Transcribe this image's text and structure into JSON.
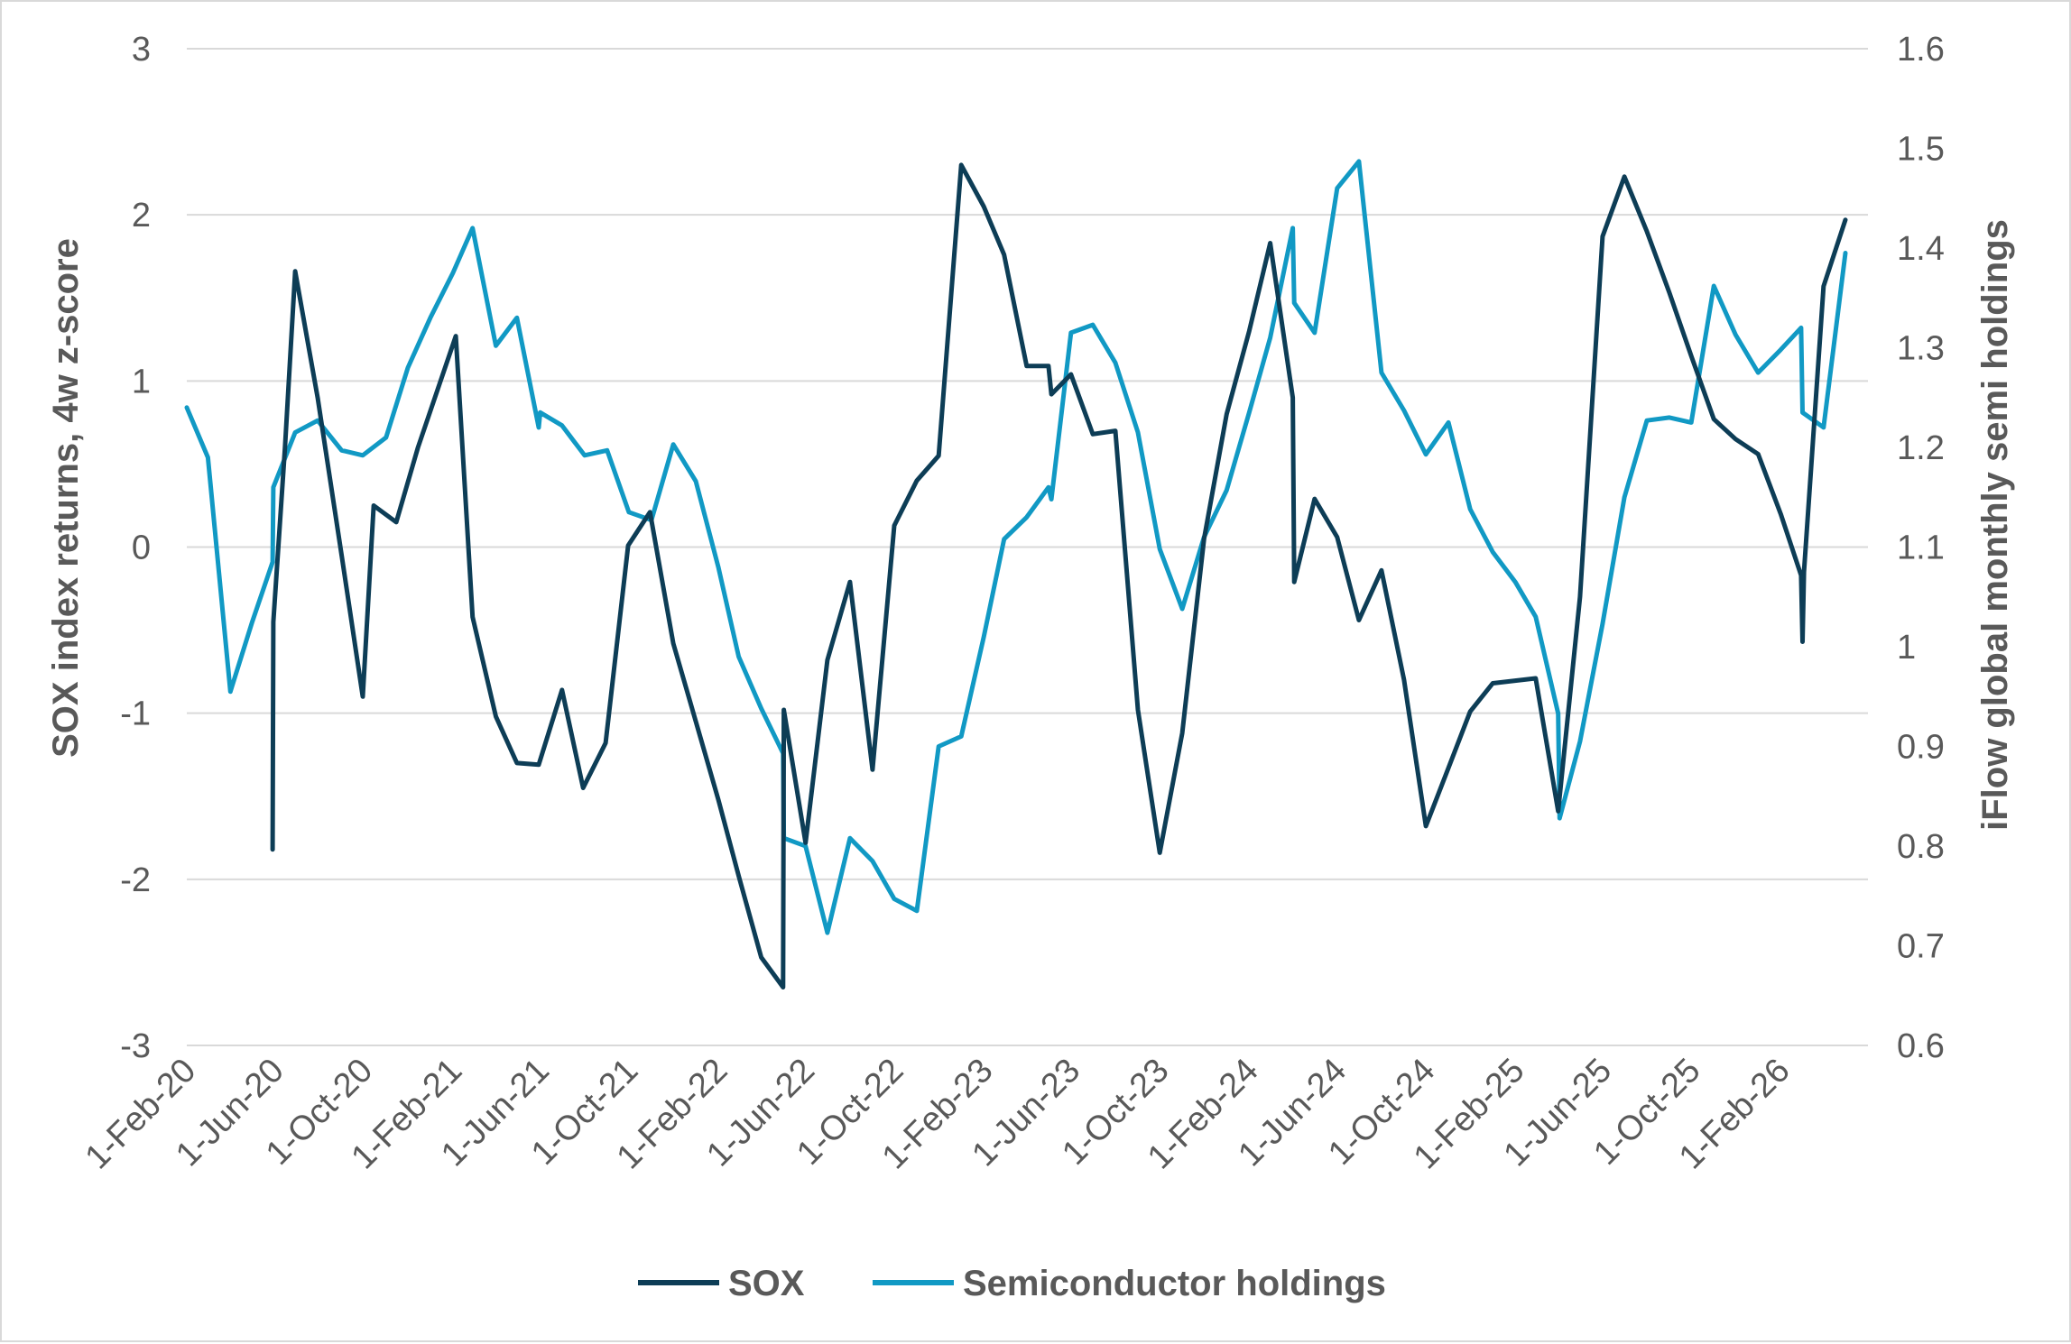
{
  "chart_data": {
    "type": "line",
    "title": "",
    "y_left_label": "SOX index returns, 4w  z-score",
    "y_right_label": "iFlow global monthly semi holdings",
    "y_left_ticks": [
      "3",
      "2",
      "1",
      "0",
      "-1",
      "-2",
      "-3"
    ],
    "y_right_ticks": [
      "1.6",
      "1.5",
      "1.4",
      "1.3",
      "1.2",
      "1.1",
      "1",
      "0.9",
      "0.8",
      "0.7",
      "0.6"
    ],
    "y_left_range": [
      -3,
      3
    ],
    "y_right_range": [
      0.6,
      1.6
    ],
    "x_range": [
      "2020-02-01",
      "2026-06-01"
    ],
    "x_ticks": [
      {
        "label": "1-Feb-20",
        "date": "2020-02-01"
      },
      {
        "label": "1-Jun-20",
        "date": "2020-06-01"
      },
      {
        "label": "1-Oct-20",
        "date": "2020-10-01"
      },
      {
        "label": "1-Feb-21",
        "date": "2021-02-01"
      },
      {
        "label": "1-Jun-21",
        "date": "2021-06-01"
      },
      {
        "label": "1-Oct-21",
        "date": "2021-10-01"
      },
      {
        "label": "1-Feb-22",
        "date": "2022-02-01"
      },
      {
        "label": "1-Jun-22",
        "date": "2022-06-01"
      },
      {
        "label": "1-Oct-22",
        "date": "2022-10-01"
      },
      {
        "label": "1-Feb-23",
        "date": "2023-02-01"
      },
      {
        "label": "1-Jun-23",
        "date": "2023-06-01"
      },
      {
        "label": "1-Oct-23",
        "date": "2023-10-01"
      },
      {
        "label": "1-Feb-24",
        "date": "2024-02-01"
      },
      {
        "label": "1-Jun-24",
        "date": "2024-06-01"
      },
      {
        "label": "1-Oct-24",
        "date": "2024-10-01"
      },
      {
        "label": "1-Feb-25",
        "date": "2025-02-01"
      },
      {
        "label": "1-Jun-25",
        "date": "2025-06-01"
      },
      {
        "label": "1-Oct-25",
        "date": "2025-10-01"
      },
      {
        "label": "1-Feb-26",
        "date": "2026-02-01"
      }
    ],
    "grid": true,
    "legend_position": "bottom",
    "series": [
      {
        "name": "SOX",
        "axis": "left",
        "color": "#0d3d56",
        "points": [
          [
            "2020-05-29",
            -1.82
          ],
          [
            "2020-05-30",
            -0.45
          ],
          [
            "2020-06-15",
            0.6
          ],
          [
            "2020-06-29",
            1.66
          ],
          [
            "2020-07-30",
            0.9
          ],
          [
            "2020-09-01",
            -0.05
          ],
          [
            "2020-09-30",
            -0.9
          ],
          [
            "2020-10-15",
            0.25
          ],
          [
            "2020-11-15",
            0.15
          ],
          [
            "2020-12-15",
            0.6
          ],
          [
            "2021-02-05",
            1.27
          ],
          [
            "2021-02-28",
            -0.42
          ],
          [
            "2021-04-01",
            -1.02
          ],
          [
            "2021-04-30",
            -1.3
          ],
          [
            "2021-05-30",
            -1.31
          ],
          [
            "2021-07-01",
            -0.86
          ],
          [
            "2021-07-30",
            -1.45
          ],
          [
            "2021-08-30",
            -1.18
          ],
          [
            "2021-09-30",
            0.01
          ],
          [
            "2021-10-30",
            0.21
          ],
          [
            "2021-12-01",
            -0.58
          ],
          [
            "2022-01-01",
            -1.05
          ],
          [
            "2022-02-01",
            -1.52
          ],
          [
            "2022-03-01",
            -1.98
          ],
          [
            "2022-04-01",
            -2.47
          ],
          [
            "2022-05-01",
            -2.65
          ],
          [
            "2022-05-02",
            -0.98
          ],
          [
            "2022-06-01",
            -1.78
          ],
          [
            "2022-07-01",
            -0.68
          ],
          [
            "2022-08-01",
            -0.21
          ],
          [
            "2022-09-01",
            -1.34
          ],
          [
            "2022-10-01",
            0.13
          ],
          [
            "2022-11-01",
            0.4
          ],
          [
            "2022-12-01",
            0.55
          ],
          [
            "2023-01-01",
            2.3
          ],
          [
            "2023-02-01",
            2.05
          ],
          [
            "2023-03-01",
            1.76
          ],
          [
            "2023-04-01",
            1.09
          ],
          [
            "2023-05-01",
            1.09
          ],
          [
            "2023-05-05",
            0.92
          ],
          [
            "2023-06-01",
            1.04
          ],
          [
            "2023-07-01",
            0.68
          ],
          [
            "2023-08-01",
            0.7
          ],
          [
            "2023-09-01",
            -0.98
          ],
          [
            "2023-10-01",
            -1.84
          ],
          [
            "2023-11-01",
            -1.12
          ],
          [
            "2023-12-01",
            0.05
          ],
          [
            "2024-01-01",
            0.8
          ],
          [
            "2024-02-01",
            1.3
          ],
          [
            "2024-03-01",
            1.83
          ],
          [
            "2024-04-01",
            0.9
          ],
          [
            "2024-04-03",
            -0.21
          ],
          [
            "2024-05-01",
            0.29
          ],
          [
            "2024-06-01",
            0.06
          ],
          [
            "2024-07-01",
            -0.44
          ],
          [
            "2024-08-01",
            -0.14
          ],
          [
            "2024-09-01",
            -0.8
          ],
          [
            "2024-10-01",
            -1.68
          ],
          [
            "2024-11-01",
            -1.33
          ],
          [
            "2024-12-01",
            -0.99
          ],
          [
            "2025-01-01",
            -0.82
          ],
          [
            "2025-03-01",
            -0.79
          ],
          [
            "2025-04-01",
            -1.59
          ],
          [
            "2025-05-01",
            -0.3
          ],
          [
            "2025-06-01",
            1.87
          ],
          [
            "2025-07-01",
            2.23
          ],
          [
            "2025-08-01",
            1.9
          ],
          [
            "2025-09-01",
            1.53
          ],
          [
            "2025-10-01",
            1.15
          ],
          [
            "2025-11-01",
            0.77
          ],
          [
            "2025-12-01",
            0.65
          ],
          [
            "2026-01-01",
            0.56
          ],
          [
            "2026-02-01",
            0.2
          ],
          [
            "2026-03-01",
            -0.17
          ],
          [
            "2026-03-03",
            -0.57
          ],
          [
            "2026-03-05",
            -0.15
          ],
          [
            "2026-04-01",
            1.57
          ],
          [
            "2026-05-01",
            1.97
          ]
        ]
      },
      {
        "name": "Semiconductor holdings",
        "axis": "right",
        "color": "#1199c4",
        "points": [
          [
            "2020-02-01",
            1.24
          ],
          [
            "2020-03-01",
            1.19
          ],
          [
            "2020-04-01",
            0.955
          ],
          [
            "2020-05-01",
            1.025
          ],
          [
            "2020-05-29",
            1.085
          ],
          [
            "2020-05-30",
            1.16
          ],
          [
            "2020-06-29",
            1.215
          ],
          [
            "2020-07-30",
            1.227
          ],
          [
            "2020-09-01",
            1.197
          ],
          [
            "2020-09-30",
            1.192
          ],
          [
            "2020-11-01",
            1.21
          ],
          [
            "2020-12-01",
            1.28
          ],
          [
            "2021-01-01",
            1.33
          ],
          [
            "2021-02-01",
            1.375
          ],
          [
            "2021-02-28",
            1.42
          ],
          [
            "2021-04-01",
            1.302
          ],
          [
            "2021-04-30",
            1.33
          ],
          [
            "2021-05-30",
            1.22
          ],
          [
            "2021-06-01",
            1.235
          ],
          [
            "2021-07-01",
            1.222
          ],
          [
            "2021-08-01",
            1.192
          ],
          [
            "2021-09-01",
            1.197
          ],
          [
            "2021-10-01",
            1.135
          ],
          [
            "2021-11-01",
            1.127
          ],
          [
            "2021-12-01",
            1.203
          ],
          [
            "2022-01-01",
            1.166
          ],
          [
            "2022-02-01",
            1.08
          ],
          [
            "2022-03-01",
            0.99
          ],
          [
            "2022-04-01",
            0.938
          ],
          [
            "2022-05-01",
            0.893
          ],
          [
            "2022-05-02",
            0.808
          ],
          [
            "2022-06-01",
            0.8
          ],
          [
            "2022-07-01",
            0.713
          ],
          [
            "2022-08-01",
            0.808
          ],
          [
            "2022-09-01",
            0.785
          ],
          [
            "2022-10-01",
            0.747
          ],
          [
            "2022-11-01",
            0.735
          ],
          [
            "2022-12-01",
            0.9
          ],
          [
            "2023-01-01",
            0.91
          ],
          [
            "2023-02-01",
            1.01
          ],
          [
            "2023-03-01",
            1.108
          ],
          [
            "2023-04-01",
            1.13
          ],
          [
            "2023-05-01",
            1.16
          ],
          [
            "2023-05-05",
            1.148
          ],
          [
            "2023-06-01",
            1.315
          ],
          [
            "2023-07-01",
            1.323
          ],
          [
            "2023-08-01",
            1.285
          ],
          [
            "2023-09-01",
            1.215
          ],
          [
            "2023-10-01",
            1.098
          ],
          [
            "2023-11-01",
            1.038
          ],
          [
            "2023-12-01",
            1.11
          ],
          [
            "2024-01-01",
            1.157
          ],
          [
            "2024-02-01",
            1.235
          ],
          [
            "2024-03-01",
            1.31
          ],
          [
            "2024-04-01",
            1.42
          ],
          [
            "2024-04-03",
            1.345
          ],
          [
            "2024-05-01",
            1.315
          ],
          [
            "2024-06-01",
            1.46
          ],
          [
            "2024-07-01",
            1.487
          ],
          [
            "2024-08-01",
            1.275
          ],
          [
            "2024-09-01",
            1.237
          ],
          [
            "2024-10-01",
            1.193
          ],
          [
            "2024-11-01",
            1.225
          ],
          [
            "2024-12-01",
            1.138
          ],
          [
            "2025-01-01",
            1.095
          ],
          [
            "2025-02-01",
            1.065
          ],
          [
            "2025-03-01",
            1.03
          ],
          [
            "2025-04-01",
            0.933
          ],
          [
            "2025-04-03",
            0.828
          ],
          [
            "2025-05-01",
            0.905
          ],
          [
            "2025-06-01",
            1.023
          ],
          [
            "2025-07-01",
            1.15
          ],
          [
            "2025-08-01",
            1.227
          ],
          [
            "2025-09-01",
            1.23
          ],
          [
            "2025-10-01",
            1.225
          ],
          [
            "2025-11-01",
            1.362
          ],
          [
            "2025-12-01",
            1.313
          ],
          [
            "2026-01-01",
            1.275
          ],
          [
            "2026-02-01",
            1.298
          ],
          [
            "2026-03-01",
            1.32
          ],
          [
            "2026-03-03",
            1.235
          ],
          [
            "2026-04-01",
            1.22
          ],
          [
            "2026-05-01",
            1.395
          ]
        ]
      }
    ]
  }
}
